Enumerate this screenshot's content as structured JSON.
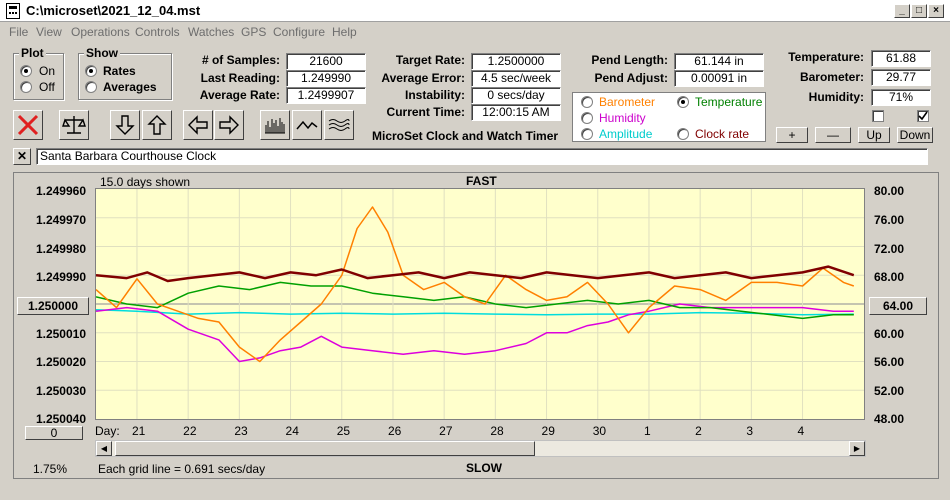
{
  "window": {
    "title": "C:\\microset\\2021_12_04.mst"
  },
  "menu": [
    "File",
    "View",
    "Operations",
    "Controls",
    "Watches",
    "GPS",
    "Configure",
    "Help"
  ],
  "plot_group": {
    "label": "Plot",
    "options": [
      "On",
      "Off"
    ],
    "selected": "On"
  },
  "show_group": {
    "label": "Show",
    "options": [
      "Rates",
      "Averages"
    ],
    "selected": "Rates"
  },
  "stats": {
    "samples_label": "# of Samples:",
    "samples": "21600",
    "last_label": "Last Reading:",
    "last": "1.249990",
    "avg_rate_label": "Average Rate:",
    "avg_rate": "1.2499907",
    "target_label": "Target Rate:",
    "target": "1.2500000",
    "avg_err_label": "Average Error:",
    "avg_err": "4.5 sec/week",
    "instab_label": "Instability:",
    "instab": "0 secs/day",
    "time_label": "Current Time:",
    "time": "12:00:15 AM",
    "pend_len_label": "Pend Length:",
    "pend_len": "61.144 in",
    "pend_adj_label": "Pend Adjust:",
    "pend_adj": "0.00091 in",
    "temp_label": "Temperature:",
    "temp": "61.88",
    "baro_label": "Barometer:",
    "baro": "29.77",
    "hum_label": "Humidity:",
    "hum": "71%"
  },
  "brand": "MicroSet Clock and Watch Timer",
  "overlay": {
    "options": [
      {
        "label": "Barometer",
        "color": "#ff8000",
        "selected": false
      },
      {
        "label": "Temperature",
        "color": "#008000",
        "selected": true
      },
      {
        "label": "Humidity",
        "color": "#cc00cc",
        "selected": false
      },
      {
        "label": "Amplitude",
        "color": "#00cccc",
        "selected": false
      },
      {
        "label": "Clock rate",
        "color": "#800000",
        "selected": false
      }
    ]
  },
  "scale_buttons": [
    "+",
    "—",
    "Up",
    "Down"
  ],
  "clock_name": "Santa Barbara Courthouse Clock",
  "chart_header": {
    "days_shown": "15.0 days shown",
    "top": "FAST",
    "bottom": "SLOW",
    "grid_note": "Each grid line = 0.691 secs/day",
    "percent": "1.75%",
    "offset_button": "0",
    "right_button": "64.00",
    "left_button": "1.250000",
    "day_label": "Day:"
  },
  "chart_data": {
    "type": "line",
    "x_label": "Day",
    "x_ticks": [
      "21",
      "22",
      "23",
      "24",
      "25",
      "26",
      "27",
      "28",
      "29",
      "30",
      "1",
      "2",
      "3",
      "4"
    ],
    "y_left_ticks": [
      "1.249960",
      "1.249970",
      "1.249980",
      "1.249990",
      "1.250000",
      "1.250010",
      "1.250020",
      "1.250030",
      "1.250040"
    ],
    "y_left_range": [
      1.25004,
      1.24996
    ],
    "y_right_ticks": [
      "80.00",
      "76.00",
      "72.00",
      "68.00",
      "64.00",
      "60.00",
      "56.00",
      "52.00",
      "48.00"
    ],
    "y_right_range": [
      48,
      80
    ],
    "x_range": [
      20.2,
      35.2
    ],
    "grid": true,
    "series": [
      {
        "name": "Clock rate",
        "color": "#800000",
        "axis": "left",
        "width": 2.5,
        "x": [
          20.2,
          20.8,
          21.2,
          21.6,
          22.0,
          22.5,
          23.0,
          23.5,
          24.0,
          24.5,
          25.0,
          25.5,
          26.0,
          26.5,
          27.0,
          27.5,
          28.0,
          28.5,
          29.0,
          29.5,
          30.0,
          30.5,
          31.0,
          31.5,
          32.0,
          32.5,
          33.0,
          33.5,
          34.0,
          34.5,
          35.0
        ],
        "y": [
          1.24999,
          1.249991,
          1.249989,
          1.249992,
          1.249991,
          1.24999,
          1.249989,
          1.249991,
          1.249989,
          1.24999,
          1.249988,
          1.249991,
          1.24999,
          1.249989,
          1.249991,
          1.249989,
          1.24999,
          1.249991,
          1.249989,
          1.24999,
          1.249991,
          1.24999,
          1.249989,
          1.249991,
          1.24999,
          1.249989,
          1.249991,
          1.24999,
          1.249989,
          1.249987,
          1.24999
        ]
      },
      {
        "name": "Barometer",
        "color": "#ff8000",
        "axis": "right",
        "width": 1.5,
        "x": [
          20.2,
          20.6,
          21.0,
          21.4,
          21.8,
          22.2,
          22.6,
          23.0,
          23.4,
          23.8,
          24.2,
          24.6,
          25.0,
          25.3,
          25.6,
          25.9,
          26.2,
          26.6,
          27.0,
          27.4,
          27.8,
          28.2,
          28.6,
          29.0,
          29.4,
          29.8,
          30.2,
          30.6,
          31.0,
          31.5,
          32.0,
          32.5,
          33.0,
          33.5,
          34.0,
          34.4,
          34.8,
          35.0
        ],
        "y": [
          66.0,
          63.5,
          67.5,
          64.0,
          63.0,
          62.0,
          61.5,
          58.0,
          56.0,
          59.0,
          61.5,
          64.0,
          68.0,
          74.5,
          77.5,
          74.0,
          68.0,
          66.0,
          67.0,
          65.0,
          64.0,
          68.0,
          66.0,
          64.5,
          65.0,
          67.0,
          64.0,
          60.0,
          63.5,
          66.5,
          66.0,
          64.5,
          67.0,
          67.0,
          66.5,
          69.0,
          67.0,
          66.5
        ]
      },
      {
        "name": "Temperature",
        "color": "#00a000",
        "axis": "right",
        "width": 1.5,
        "x": [
          20.2,
          20.8,
          21.4,
          22.0,
          22.6,
          23.2,
          23.8,
          24.4,
          25.0,
          25.6,
          26.2,
          26.8,
          27.4,
          28.0,
          28.6,
          29.2,
          29.8,
          30.4,
          31.0,
          31.6,
          32.2,
          32.8,
          33.4,
          34.0,
          34.6,
          35.0
        ],
        "y": [
          65.0,
          64.0,
          63.5,
          65.5,
          66.5,
          66.0,
          67.0,
          66.5,
          66.5,
          65.5,
          65.0,
          64.5,
          65.0,
          64.0,
          63.5,
          64.0,
          64.5,
          64.0,
          64.5,
          63.5,
          63.5,
          63.0,
          62.5,
          62.0,
          62.5,
          62.5
        ]
      },
      {
        "name": "Amplitude",
        "color": "#00dddd",
        "axis": "right",
        "width": 1.5,
        "x": [
          20.2,
          21.0,
          22.0,
          23.0,
          24.0,
          25.0,
          26.0,
          27.0,
          28.0,
          29.0,
          30.0,
          31.0,
          32.0,
          33.0,
          34.0,
          35.0
        ],
        "y": [
          63.2,
          63.0,
          62.6,
          62.8,
          62.6,
          62.7,
          62.6,
          62.7,
          62.6,
          62.5,
          62.6,
          62.6,
          62.8,
          62.7,
          62.5,
          62.6
        ]
      },
      {
        "name": "Humidity",
        "color": "#dd00dd",
        "axis": "right",
        "width": 1.5,
        "x": [
          20.2,
          20.8,
          21.4,
          22.0,
          22.6,
          23.0,
          23.4,
          23.8,
          24.2,
          24.6,
          25.0,
          25.6,
          26.2,
          26.8,
          27.4,
          28.0,
          28.6,
          29.0,
          29.4,
          29.8,
          30.2,
          30.6,
          31.0,
          31.6,
          32.2,
          32.8,
          33.4,
          34.0,
          34.6,
          35.0
        ],
        "y": [
          63.0,
          63.5,
          63.0,
          60.5,
          59.0,
          56.0,
          56.5,
          57.5,
          58.0,
          59.5,
          58.0,
          57.5,
          57.0,
          57.5,
          57.0,
          57.5,
          58.5,
          60.0,
          60.0,
          61.0,
          61.5,
          62.5,
          63.0,
          64.0,
          63.5,
          63.5,
          63.5,
          63.5,
          63.0,
          63.0
        ]
      }
    ]
  },
  "icons": [
    "stop-icon",
    "balance-icon",
    "arrow-down-icon",
    "arrow-up-icon",
    "arrow-left-icon",
    "arrow-right-icon",
    "bars-icon",
    "wave-icon",
    "multiwave-icon"
  ]
}
